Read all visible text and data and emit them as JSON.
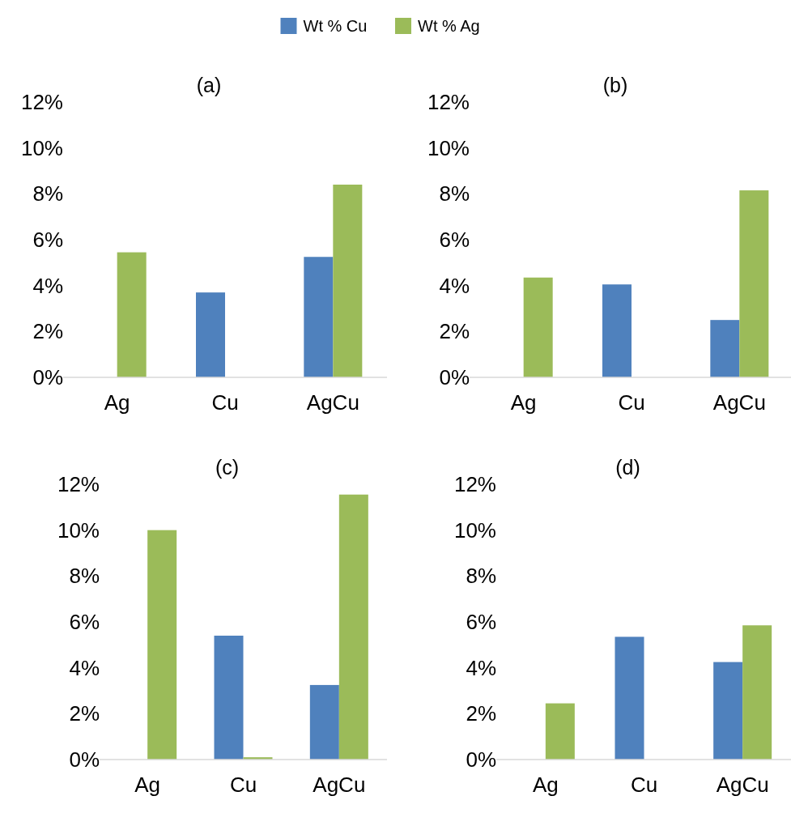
{
  "chart_data": [
    {
      "type": "bar",
      "title": "(a)",
      "categories": [
        "Ag",
        "Cu",
        "AgCu"
      ],
      "legend": "top",
      "ylim": [
        0,
        12
      ],
      "yticks": [
        {
          "value": 0,
          "label": "0%"
        },
        {
          "value": 2,
          "label": "2%"
        },
        {
          "value": 4,
          "label": "4%"
        },
        {
          "value": 6,
          "label": "6%"
        },
        {
          "value": 8,
          "label": "8%"
        },
        {
          "value": 10,
          "label": "10%"
        },
        {
          "value": 12,
          "label": "12%"
        }
      ],
      "series": [
        {
          "name": "Wt % Cu",
          "color": "#4f81bd",
          "values": [
            0,
            3.7,
            5.25
          ]
        },
        {
          "name": "Wt % Ag",
          "color": "#9bbb59",
          "values": [
            5.45,
            0,
            8.4
          ]
        }
      ]
    },
    {
      "type": "bar",
      "title": "(b)",
      "categories": [
        "Ag",
        "Cu",
        "AgCu"
      ],
      "ylim": [
        0,
        12
      ],
      "yticks": [
        {
          "value": 0,
          "label": "0%"
        },
        {
          "value": 2,
          "label": "2%"
        },
        {
          "value": 4,
          "label": "4%"
        },
        {
          "value": 6,
          "label": "6%"
        },
        {
          "value": 8,
          "label": "8%"
        },
        {
          "value": 10,
          "label": "10%"
        },
        {
          "value": 12,
          "label": "12%"
        }
      ],
      "series": [
        {
          "color": "#4f81bd",
          "values": [
            0,
            4.05,
            2.5
          ]
        },
        {
          "color": "#9bbb59",
          "values": [
            4.35,
            0,
            8.15
          ]
        }
      ]
    },
    {
      "type": "bar",
      "title": "(c)",
      "categories": [
        "Ag",
        "Cu",
        "AgCu"
      ],
      "ylim": [
        0,
        12
      ],
      "yticks": [
        {
          "value": 0,
          "label": "0%"
        },
        {
          "value": 2,
          "label": "2%"
        },
        {
          "value": 4,
          "label": "4%"
        },
        {
          "value": 6,
          "label": "6%"
        },
        {
          "value": 8,
          "label": "8%"
        },
        {
          "value": 10,
          "label": "10%"
        },
        {
          "value": 12,
          "label": "12%"
        }
      ],
      "series": [
        {
          "color": "#4f81bd",
          "values": [
            0,
            5.4,
            3.25
          ]
        },
        {
          "color": "#9bbb59",
          "values": [
            10,
            0.1,
            11.55
          ]
        }
      ]
    },
    {
      "type": "bar",
      "title": "(d)",
      "categories": [
        "Ag",
        "Cu",
        "AgCu"
      ],
      "ylim": [
        0,
        12
      ],
      "yticks": [
        {
          "value": 0,
          "label": "0%"
        },
        {
          "value": 2,
          "label": "2%"
        },
        {
          "value": 4,
          "label": "4%"
        },
        {
          "value": 6,
          "label": "6%"
        },
        {
          "value": 8,
          "label": "8%"
        },
        {
          "value": 10,
          "label": "10%"
        },
        {
          "value": 12,
          "label": "12%"
        }
      ],
      "series": [
        {
          "color": "#4f81bd",
          "values": [
            0,
            5.35,
            4.25
          ]
        },
        {
          "color": "#9bbb59",
          "values": [
            2.45,
            0,
            5.85
          ]
        }
      ]
    }
  ]
}
